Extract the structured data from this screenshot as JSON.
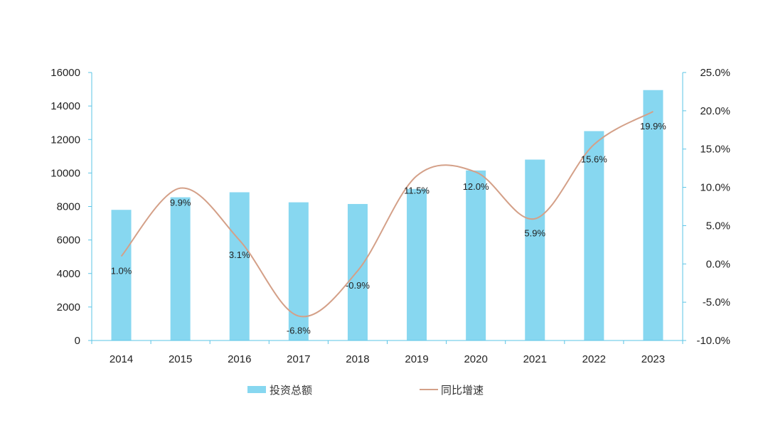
{
  "chart_data": {
    "type": "bar",
    "categories": [
      "2014",
      "2015",
      "2016",
      "2017",
      "2018",
      "2019",
      "2020",
      "2021",
      "2022",
      "2023"
    ],
    "series": [
      {
        "name": "投资总额",
        "type": "bar",
        "axis": "left",
        "color": "#87d7f0",
        "values": [
          7800,
          8550,
          8850,
          8250,
          8150,
          9050,
          10150,
          10800,
          12500,
          14950
        ]
      },
      {
        "name": "同比增速",
        "type": "line",
        "axis": "right",
        "color": "#d4a088",
        "smooth": true,
        "values": [
          1.0,
          9.9,
          3.1,
          -6.8,
          -0.9,
          11.5,
          12.0,
          5.9,
          15.6,
          19.9
        ],
        "labels": [
          "1.0%",
          "9.9%",
          "3.1%",
          "-6.8%",
          "-0.9%",
          "11.5%",
          "12.0%",
          "5.9%",
          "15.6%",
          "19.9%"
        ]
      }
    ],
    "y_left": {
      "ylim": [
        0,
        16000
      ],
      "ticks": [
        "0",
        "2000",
        "4000",
        "6000",
        "8000",
        "10000",
        "12000",
        "14000",
        "16000"
      ]
    },
    "y_right": {
      "ylim": [
        -10,
        25
      ],
      "ticks": [
        "-10.0%",
        "-5.0%",
        "0.0%",
        "5.0%",
        "10.0%",
        "15.0%",
        "20.0%",
        "25.0%"
      ]
    },
    "axis_color": "#5bc4e6",
    "grid": false,
    "legend": {
      "position": "bottom",
      "items": [
        "投资总额",
        "同比增速"
      ]
    }
  }
}
